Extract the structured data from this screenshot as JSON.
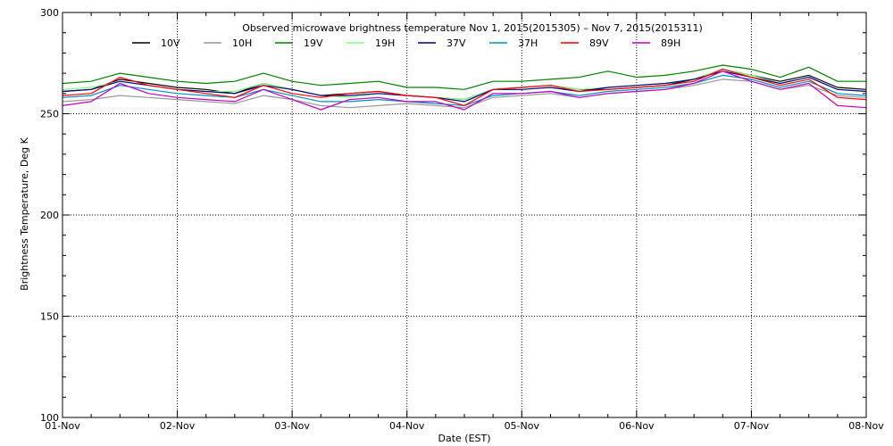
{
  "chart_data": {
    "type": "line",
    "title": "Observed microwave brightness temperature Nov  1, 2015(2015305) – Nov  7, 2015(2015311)",
    "xlabel": "Date (EST)",
    "ylabel": "Brightness Temperature, Deg K",
    "ylim": [
      100,
      300
    ],
    "yticks": [
      100,
      150,
      200,
      250,
      300
    ],
    "xlim": [
      0,
      7
    ],
    "xticks": [
      "01-Nov",
      "02-Nov",
      "03-Nov",
      "04-Nov",
      "05-Nov",
      "06-Nov",
      "07-Nov",
      "08-Nov"
    ],
    "grid": "dotted",
    "legend_position": "top",
    "x": [
      0.0,
      0.25,
      0.5,
      0.75,
      1.0,
      1.25,
      1.5,
      1.75,
      2.0,
      2.25,
      2.5,
      2.75,
      3.0,
      3.25,
      3.5,
      3.75,
      4.0,
      4.25,
      4.5,
      4.75,
      5.0,
      5.25,
      5.5,
      5.75,
      6.0,
      6.25,
      6.5,
      6.75,
      7.0
    ],
    "series": [
      {
        "name": "10V",
        "color": "#000000",
        "values": [
          261,
          262,
          267,
          265,
          263,
          262,
          260,
          265,
          262,
          259,
          260,
          261,
          259,
          258,
          257,
          262,
          263,
          264,
          262,
          262,
          263,
          264,
          267,
          272,
          269,
          266,
          269,
          263,
          262
        ]
      },
      {
        "name": "10H",
        "color": "#999999",
        "values": [
          256,
          257,
          259,
          258,
          257,
          256,
          255,
          259,
          257,
          254,
          253,
          254,
          255,
          254,
          253,
          258,
          259,
          260,
          258,
          260,
          261,
          262,
          264,
          267,
          266,
          262,
          264,
          259,
          258
        ]
      },
      {
        "name": "19V",
        "color": "#008000",
        "values": [
          265,
          266,
          270,
          268,
          266,
          265,
          266,
          270,
          266,
          264,
          265,
          266,
          263,
          263,
          262,
          266,
          266,
          267,
          268,
          271,
          268,
          269,
          271,
          274,
          272,
          268,
          273,
          266,
          266
        ]
      },
      {
        "name": "19H",
        "color": "#80ff80",
        "values": [
          262,
          263,
          266,
          264,
          262,
          261,
          261,
          265,
          262,
          259,
          258,
          260,
          259,
          258,
          257,
          262,
          263,
          264,
          262,
          263,
          264,
          265,
          267,
          272,
          269,
          265,
          268,
          262,
          261
        ]
      },
      {
        "name": "37V",
        "color": "#000080",
        "values": [
          261,
          262,
          266,
          264,
          262,
          261,
          260,
          264,
          262,
          259,
          259,
          260,
          259,
          258,
          256,
          262,
          262,
          263,
          261,
          263,
          264,
          265,
          267,
          271,
          268,
          265,
          268,
          262,
          261
        ]
      },
      {
        "name": "37H",
        "color": "#0090c0",
        "values": [
          258,
          259,
          264,
          262,
          260,
          259,
          258,
          262,
          259,
          256,
          256,
          257,
          256,
          255,
          254,
          259,
          260,
          261,
          259,
          261,
          262,
          263,
          265,
          269,
          267,
          263,
          266,
          260,
          259
        ]
      },
      {
        "name": "89V",
        "color": "#ff0000",
        "values": [
          259,
          260,
          268,
          264,
          262,
          260,
          258,
          264,
          260,
          258,
          260,
          261,
          259,
          258,
          254,
          262,
          263,
          264,
          261,
          262,
          263,
          264,
          266,
          272,
          268,
          264,
          267,
          258,
          257
        ]
      },
      {
        "name": "89H",
        "color": "#c000c0",
        "values": [
          254,
          256,
          265,
          260,
          258,
          257,
          256,
          262,
          257,
          252,
          257,
          258,
          256,
          256,
          252,
          260,
          260,
          261,
          258,
          260,
          261,
          262,
          265,
          271,
          266,
          262,
          265,
          254,
          253
        ]
      }
    ]
  }
}
